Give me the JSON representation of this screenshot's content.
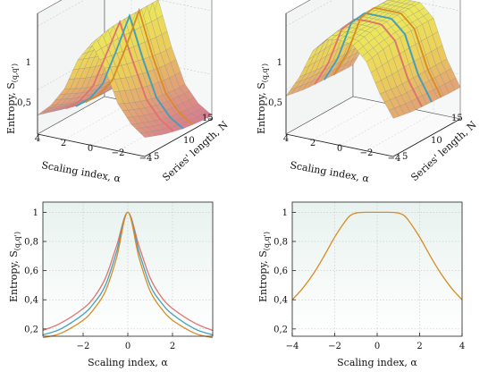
{
  "colors": {
    "series": [
      "#e0736e",
      "#3fa0bf",
      "#d98b24"
    ],
    "panel_bg_top": "#e8f2ef",
    "panel_bg_bottom": "#ffffff",
    "surface_low": "#d97b8f",
    "surface_mid": "#eccc5a",
    "surface_high": "#ece85c",
    "mesh": "#8b8b8b"
  },
  "panels": [
    {
      "id": "top-left",
      "type": "surface3d",
      "zlabel": "Entropy, S",
      "zlabel_sub": "(q,q')",
      "alpha_label": "Scaling index, α",
      "n_label": "Series' length, N",
      "z_ticks": [
        "0,5",
        "1"
      ],
      "alpha_ticks": [
        "4",
        "2",
        "0",
        "−2",
        "−4"
      ],
      "n_ticks": [
        "5",
        "10",
        "15"
      ]
    },
    {
      "id": "top-right",
      "type": "surface3d",
      "zlabel": "Entropy, S",
      "zlabel_sub": "(q,q')",
      "alpha_label": "Scaling index, α",
      "n_label": "Series' length, N",
      "z_ticks": [
        "0,5",
        "1"
      ],
      "alpha_ticks": [
        "4",
        "2",
        "0",
        "−2",
        "−4"
      ],
      "n_ticks": [
        "5",
        "10",
        "15"
      ]
    },
    {
      "id": "bottom-left",
      "type": "line",
      "xlabel": "Scaling index, α",
      "ylabel": "Entropy, S",
      "ylabel_sub": "(q,q')",
      "x_ticks": [
        "−2",
        "0",
        "2"
      ],
      "y_ticks": [
        "0,2",
        "0,4",
        "0,6",
        "0,8",
        "1"
      ]
    },
    {
      "id": "bottom-right",
      "type": "line",
      "xlabel": "Scaling index, α",
      "ylabel": "Entropy, S",
      "ylabel_sub": "(q,q')",
      "x_ticks": [
        "−4",
        "−2",
        "0",
        "2",
        "4"
      ],
      "y_ticks": [
        "0,2",
        "0,4",
        "0,6",
        "0,8",
        "1"
      ]
    }
  ],
  "chart_data": [
    {
      "type": "surface",
      "x_name": "alpha",
      "y_name": "N",
      "xlim": [
        -4,
        4
      ],
      "ylim": [
        2,
        16
      ],
      "zlim": [
        0.15,
        1.1
      ],
      "alpha": [
        -4,
        -3,
        -2,
        -1,
        0,
        1,
        2,
        3,
        4
      ],
      "N": [
        2,
        6,
        10,
        14
      ],
      "z": [
        [
          0.3,
          0.38,
          0.52,
          0.78,
          0.95,
          0.8,
          0.55,
          0.4,
          0.3
        ],
        [
          0.24,
          0.32,
          0.45,
          0.72,
          0.99,
          0.74,
          0.47,
          0.33,
          0.25
        ],
        [
          0.2,
          0.27,
          0.4,
          0.68,
          1.0,
          0.7,
          0.42,
          0.28,
          0.2
        ],
        [
          0.18,
          0.25,
          0.38,
          0.65,
          1.0,
          0.67,
          0.39,
          0.26,
          0.18
        ]
      ],
      "highlight_N": [
        8,
        10,
        12
      ]
    },
    {
      "type": "surface",
      "x_name": "alpha",
      "y_name": "N",
      "xlim": [
        -4,
        4
      ],
      "ylim": [
        2,
        16
      ],
      "zlim": [
        0.15,
        1.1
      ],
      "alpha": [
        -4,
        -3,
        -2,
        -1,
        0,
        1,
        2,
        3,
        4
      ],
      "N": [
        2,
        6,
        10,
        14
      ],
      "z": [
        [
          0.45,
          0.62,
          0.85,
          0.96,
          0.98,
          0.96,
          0.85,
          0.62,
          0.45
        ],
        [
          0.42,
          0.6,
          0.88,
          0.99,
          1.0,
          0.99,
          0.88,
          0.6,
          0.42
        ],
        [
          0.41,
          0.6,
          0.9,
          1.0,
          1.0,
          1.0,
          0.9,
          0.6,
          0.41
        ],
        [
          0.4,
          0.6,
          0.9,
          1.0,
          1.0,
          1.0,
          0.9,
          0.6,
          0.4
        ]
      ],
      "highlight_N": [
        8,
        10,
        12
      ]
    },
    {
      "type": "line",
      "xlim": [
        -3.8,
        3.8
      ],
      "ylim": [
        0.15,
        1.07
      ],
      "x": [
        -3.8,
        -3.0,
        -2.0,
        -1.5,
        -1.0,
        -0.5,
        0,
        0.5,
        1.0,
        1.5,
        2.0,
        3.0,
        3.8
      ],
      "series": [
        {
          "values": [
            0.19,
            0.24,
            0.34,
            0.42,
            0.55,
            0.77,
            1.0,
            0.77,
            0.55,
            0.42,
            0.34,
            0.24,
            0.19
          ]
        },
        {
          "values": [
            0.16,
            0.2,
            0.3,
            0.38,
            0.5,
            0.73,
            1.0,
            0.73,
            0.5,
            0.38,
            0.3,
            0.2,
            0.16
          ]
        },
        {
          "values": [
            0.14,
            0.17,
            0.26,
            0.34,
            0.46,
            0.69,
            1.0,
            0.69,
            0.46,
            0.34,
            0.26,
            0.17,
            0.14
          ]
        }
      ]
    },
    {
      "type": "line",
      "xlim": [
        -4,
        4
      ],
      "ylim": [
        0.15,
        1.07
      ],
      "x": [
        -4,
        -3.5,
        -3,
        -2.5,
        -2,
        -1.5,
        -1.25,
        -1,
        -0.5,
        0,
        0.5,
        1,
        1.25,
        1.5,
        2,
        2.5,
        3,
        3.5,
        4
      ],
      "series": [
        {
          "values": [
            0.4,
            0.48,
            0.58,
            0.7,
            0.83,
            0.94,
            0.98,
            0.995,
            1.0,
            1.0,
            1.0,
            0.995,
            0.98,
            0.94,
            0.83,
            0.7,
            0.58,
            0.48,
            0.4
          ]
        }
      ]
    }
  ]
}
